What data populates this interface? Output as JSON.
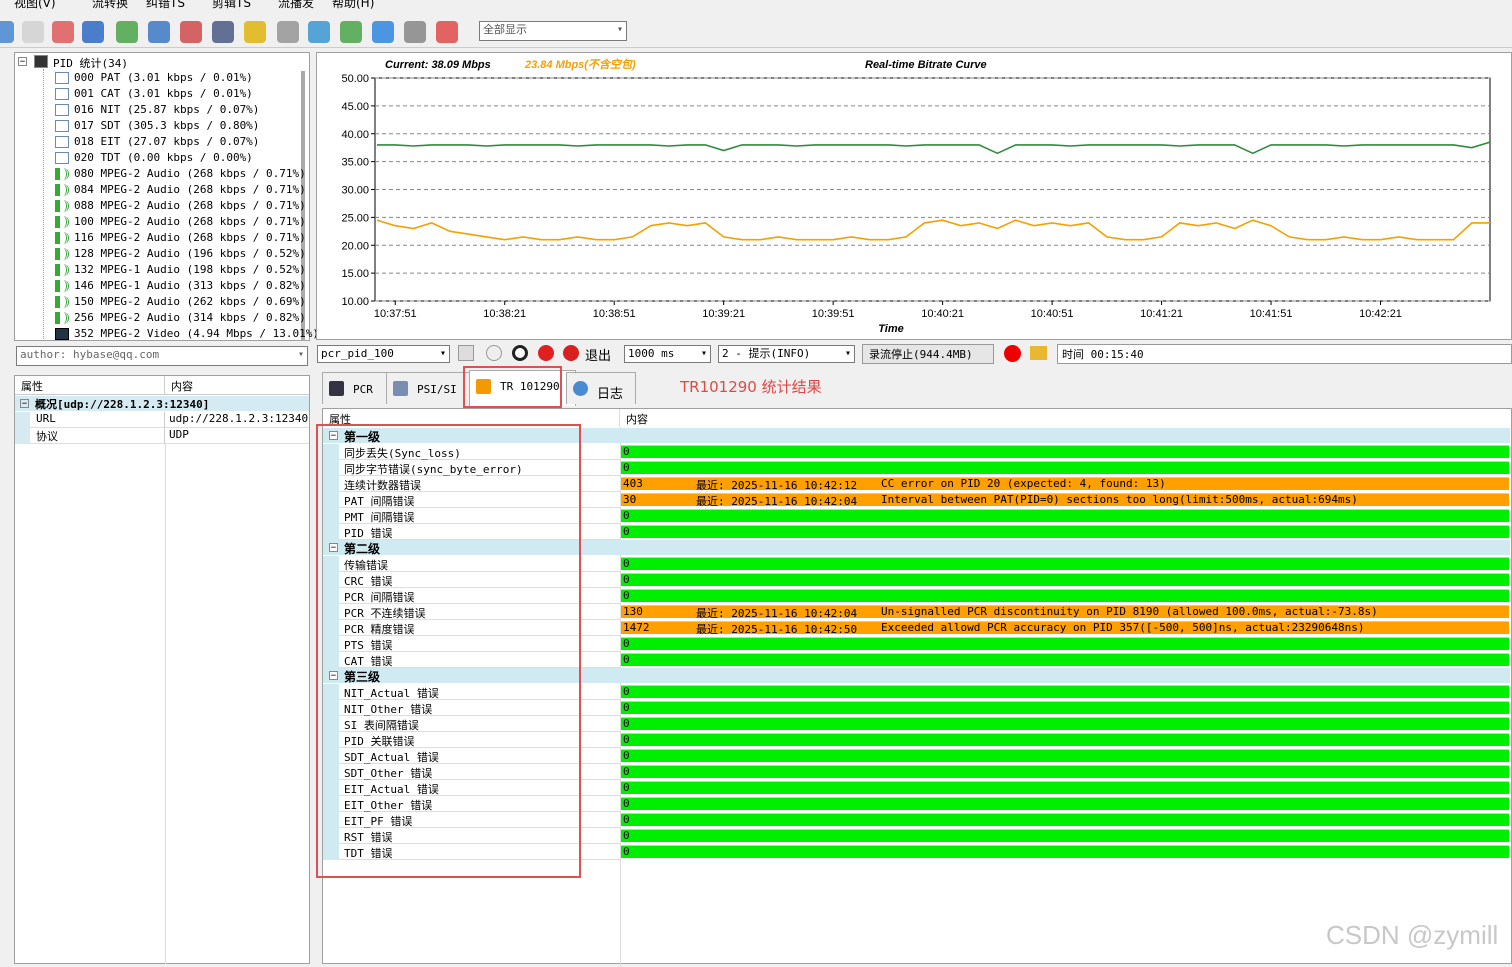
{
  "menu": [
    "视图(V)",
    "流转换",
    "纠错TS",
    "剪辑TS",
    "流播发",
    "帮助(H)"
  ],
  "toolbar": {
    "display_select": "全部显示"
  },
  "pid_tree": {
    "root": "PID 统计(34)",
    "items": [
      {
        "label": "000 PAT (3.01 kbps / 0.01%)",
        "icon": "table"
      },
      {
        "label": "001 CAT (3.01 kbps / 0.01%)",
        "icon": "table"
      },
      {
        "label": "016 NIT (25.87 kbps / 0.07%)",
        "icon": "table"
      },
      {
        "label": "017 SDT (305.3 kbps / 0.80%)",
        "icon": "table"
      },
      {
        "label": "018 EIT (27.07 kbps / 0.07%)",
        "icon": "table"
      },
      {
        "label": "020 TDT (0.00 kbps / 0.00%)",
        "icon": "table"
      },
      {
        "label": "080 MPEG-2 Audio (268 kbps / 0.71%)",
        "icon": "audio"
      },
      {
        "label": "084 MPEG-2 Audio (268 kbps / 0.71%)",
        "icon": "audio"
      },
      {
        "label": "088 MPEG-2 Audio (268 kbps / 0.71%)",
        "icon": "audio"
      },
      {
        "label": "100 MPEG-2 Audio (268 kbps / 0.71%)",
        "icon": "audio"
      },
      {
        "label": "116 MPEG-2 Audio (268 kbps / 0.71%)",
        "icon": "audio"
      },
      {
        "label": "128 MPEG-2 Audio (196 kbps / 0.52%)",
        "icon": "audio"
      },
      {
        "label": "132 MPEG-1 Audio (198 kbps / 0.52%)",
        "icon": "audio"
      },
      {
        "label": "146 MPEG-1 Audio (313 kbps / 0.82%)",
        "icon": "audio"
      },
      {
        "label": "150 MPEG-2 Audio (262 kbps / 0.69%)",
        "icon": "audio"
      },
      {
        "label": "256 MPEG-2 Audio (314 kbps / 0.82%)",
        "icon": "audio"
      },
      {
        "label": "352 MPEG-2 Video (4.94 Mbps / 13.01%)",
        "icon": "video"
      }
    ]
  },
  "author": "author: hybase@qq.com",
  "props": {
    "headers": [
      "属性",
      "内容"
    ],
    "group": "概况[udp://228.1.2.3:12340]",
    "rows": [
      [
        "URL",
        "udp://228.1.2.3:12340"
      ],
      [
        "协议",
        "UDP"
      ]
    ]
  },
  "chart_data": {
    "type": "line",
    "title": "Real-time Bitrate Curve",
    "xlabel": "Time",
    "categories": [
      null,
      "10:37:51",
      null,
      null,
      null,
      null,
      null,
      "10:38:21",
      null,
      null,
      null,
      null,
      null,
      "10:38:51",
      null,
      null,
      null,
      null,
      null,
      "10:39:21",
      null,
      null,
      null,
      null,
      null,
      "10:39:51",
      null,
      null,
      null,
      null,
      null,
      "10:40:21",
      null,
      null,
      null,
      null,
      null,
      "10:40:51",
      null,
      null,
      null,
      null,
      null,
      "10:41:21",
      null,
      null,
      null,
      null,
      null,
      "10:41:51",
      null,
      null,
      null,
      null,
      null,
      "10:42:21",
      null,
      null,
      null,
      null,
      null,
      null
    ],
    "series": [
      {
        "name": "Current: 38.09 Mbps",
        "color": "#2e8b3a",
        "values": [
          38,
          38,
          37.8,
          38,
          38,
          38,
          37.8,
          38,
          38,
          38,
          38,
          37.8,
          38,
          38,
          38,
          38,
          37.8,
          38,
          38,
          37,
          38,
          38,
          38,
          37.8,
          38,
          38,
          38,
          38,
          38,
          37.8,
          38,
          38,
          38,
          38,
          36.5,
          38,
          38,
          38,
          37.8,
          38,
          38,
          38,
          38,
          38,
          37.8,
          38,
          38,
          38,
          36.5,
          38,
          38,
          38,
          38,
          37.8,
          38,
          38,
          38,
          38,
          38,
          38,
          37.5,
          38.5
        ]
      },
      {
        "name": "23.84 Mbps(不含空包)",
        "color": "#f5a000",
        "values": [
          24.5,
          23.5,
          23,
          24,
          22.5,
          22,
          21.5,
          21,
          21.5,
          21,
          21,
          21.5,
          21,
          21,
          21.5,
          23.5,
          24,
          23.5,
          24,
          21.5,
          21,
          21,
          21.5,
          21,
          21,
          21,
          21.5,
          21,
          21,
          21.5,
          24,
          24.5,
          23.5,
          24,
          23,
          24.5,
          23.5,
          24,
          23.5,
          24,
          21.5,
          21,
          21,
          21.5,
          24,
          23.5,
          24,
          23,
          24.5,
          23.5,
          21.5,
          21,
          21,
          21.5,
          21,
          21,
          21.5,
          21,
          21,
          21,
          24,
          24
        ]
      }
    ],
    "ylim": [
      10,
      50
    ],
    "yticks": [
      {
        "value": 10,
        "label": "10.00"
      },
      {
        "value": 15,
        "label": "15.00"
      },
      {
        "value": 20,
        "label": "20.00"
      },
      {
        "value": 25,
        "label": "25.00"
      },
      {
        "value": 30,
        "label": "30.00"
      },
      {
        "value": 35,
        "label": "35.00"
      },
      {
        "value": 40,
        "label": "40.00"
      },
      {
        "value": 45,
        "label": "45.00"
      },
      {
        "value": 50,
        "label": "50.00"
      }
    ],
    "grid": true
  },
  "controls": {
    "pcr_select": "pcr_pid_100",
    "exit": "退出",
    "interval": "1000 ms",
    "log_level": "2 - 提示(INFO)",
    "record": "录流停止(944.4MB)",
    "time": "时间 00:15:40"
  },
  "tabs": [
    "PCR",
    "PSI/SI",
    "TR 101290",
    "日志"
  ],
  "annotation": "TR101290 统计结果",
  "tr101290": {
    "headers": [
      "属性",
      "内容"
    ],
    "groups": [
      {
        "name": "第一级",
        "rows": [
          {
            "name": "同步丢失(Sync_loss)",
            "count": "0"
          },
          {
            "name": "同步字节错误(sync_byte_error)",
            "count": "0"
          },
          {
            "name": "连续计数器错误",
            "count": "403",
            "latest": "最近: 2025-11-16 10:42:12",
            "message": "CC error on PID 20 (expected: 4, found: 13)"
          },
          {
            "name": "PAT 间隔错误",
            "count": "30",
            "latest": "最近: 2025-11-16 10:42:04",
            "message": "Interval between PAT(PID=0) sections too long(limit:500ms, actual:694ms)"
          },
          {
            "name": "PMT 间隔错误",
            "count": "0"
          },
          {
            "name": "PID 错误",
            "count": "0"
          }
        ]
      },
      {
        "name": "第二级",
        "rows": [
          {
            "name": "传输错误",
            "count": "0"
          },
          {
            "name": "CRC 错误",
            "count": "0"
          },
          {
            "name": "PCR 间隔错误",
            "count": "0"
          },
          {
            "name": "PCR 不连续错误",
            "count": "130",
            "latest": "最近: 2025-11-16 10:42:04",
            "message": "Un-signalled PCR discontinuity on PID 8190 (allowed 100.0ms, actual:-73.8s)"
          },
          {
            "name": "PCR 精度错误",
            "count": "1472",
            "latest": "最近: 2025-11-16 10:42:50",
            "message": "Exceeded allowd PCR accuracy on PID 357([-500, 500]ns, actual:23290648ns)"
          },
          {
            "name": "PTS 错误",
            "count": "0"
          },
          {
            "name": "CAT 错误",
            "count": "0"
          }
        ]
      },
      {
        "name": "第三级",
        "rows": [
          {
            "name": "NIT_Actual 错误",
            "count": "0"
          },
          {
            "name": "NIT_Other 错误",
            "count": "0"
          },
          {
            "name": "SI 表间隔错误",
            "count": "0"
          },
          {
            "name": "PID 关联错误",
            "count": "0"
          },
          {
            "name": "SDT_Actual 错误",
            "count": "0"
          },
          {
            "name": "SDT_Other 错误",
            "count": "0"
          },
          {
            "name": "EIT_Actual 错误",
            "count": "0"
          },
          {
            "name": "EIT_Other 错误",
            "count": "0"
          },
          {
            "name": "EIT_PF 错误",
            "count": "0"
          },
          {
            "name": "RST 错误",
            "count": "0"
          },
          {
            "name": "TDT 错误",
            "count": "0"
          }
        ]
      }
    ]
  },
  "watermark": "CSDN @zymill"
}
